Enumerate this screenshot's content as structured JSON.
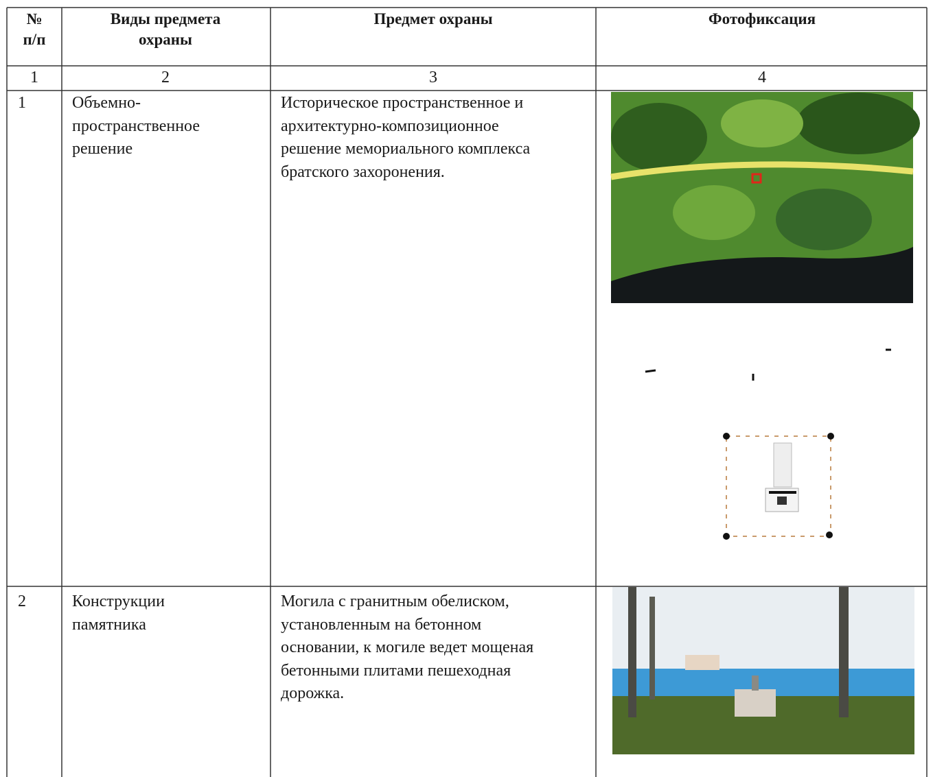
{
  "header": {
    "columns": [
      {
        "lines": [
          "№",
          "п/п"
        ]
      },
      {
        "lines": [
          "Виды предмета",
          "охраны"
        ]
      },
      {
        "lines": [
          "Предмет охраны"
        ]
      },
      {
        "lines": [
          "Фотофиксация"
        ]
      }
    ]
  },
  "numbering": [
    "1",
    "2",
    "3",
    "4"
  ],
  "rows": [
    {
      "number": "1",
      "type_lines": [
        "Объемно-",
        "пространственное",
        "решение"
      ],
      "subject_lines": [
        "Историческое пространственное и",
        "архитектурно-композиционное",
        "решение мемориального комплекса",
        "братского захоронения."
      ]
    },
    {
      "number": "2",
      "type_lines": [
        "Конструкции",
        "памятника"
      ],
      "subject_lines": [
        "Могила с гранитным обелиском,",
        "установленным на бетонном",
        "основании,  к могиле ведет мощеная",
        "бетонными плитами пешеходная",
        "дорожка."
      ]
    }
  ]
}
